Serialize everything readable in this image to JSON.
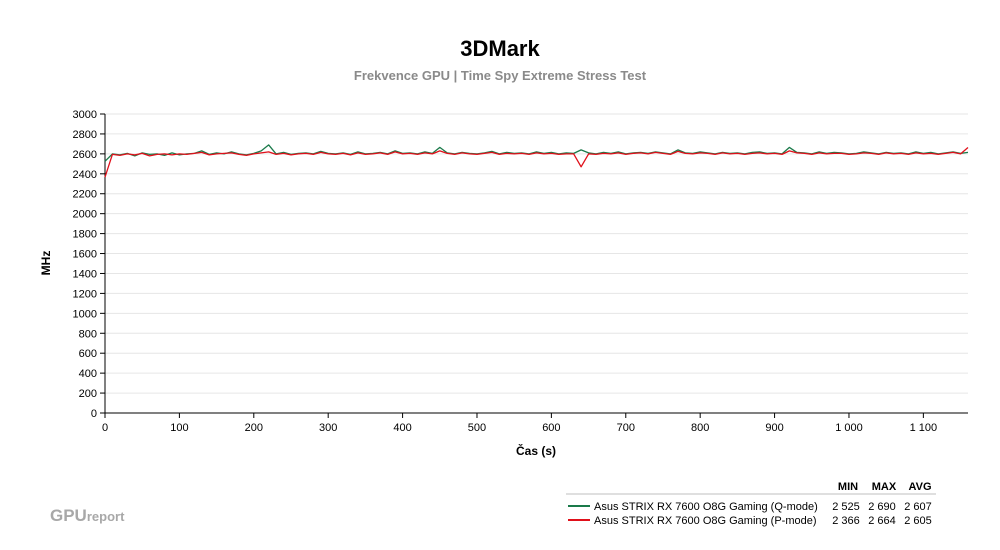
{
  "chart_data": {
    "type": "line",
    "title": "3DMark",
    "subtitle": "Frekvence GPU | Time Spy Extreme Stress Test",
    "xlabel": "Čas (s)",
    "ylabel": "MHz",
    "xlim": [
      0,
      1160
    ],
    "ylim": [
      0,
      3000
    ],
    "x_ticks": [
      0,
      100,
      200,
      300,
      400,
      500,
      600,
      700,
      800,
      900,
      1000,
      1100
    ],
    "x_tick_labels": [
      "0",
      "100",
      "200",
      "300",
      "400",
      "500",
      "600",
      "700",
      "800",
      "900",
      "1 000",
      "1 100"
    ],
    "y_ticks": [
      0,
      200,
      400,
      600,
      800,
      1000,
      1200,
      1400,
      1600,
      1800,
      2000,
      2200,
      2400,
      2600,
      2800,
      3000
    ],
    "y_tick_labels": [
      "0",
      "200",
      "400",
      "600",
      "800",
      "1000",
      "1200",
      "1400",
      "1600",
      "1800",
      "2000",
      "2200",
      "2400",
      "2600",
      "2800",
      "3000"
    ],
    "grid": "horizontal",
    "legend_position": "bottom-right",
    "stat_headers": [
      "MIN",
      "MAX",
      "AVG"
    ],
    "x": [
      0,
      10,
      20,
      30,
      40,
      50,
      60,
      70,
      80,
      90,
      100,
      110,
      120,
      130,
      140,
      150,
      160,
      170,
      180,
      190,
      200,
      210,
      220,
      230,
      240,
      250,
      260,
      270,
      280,
      290,
      300,
      310,
      320,
      330,
      340,
      350,
      360,
      370,
      380,
      390,
      400,
      410,
      420,
      430,
      440,
      450,
      460,
      470,
      480,
      490,
      500,
      510,
      520,
      530,
      540,
      550,
      560,
      570,
      580,
      590,
      600,
      610,
      620,
      630,
      640,
      650,
      660,
      670,
      680,
      690,
      700,
      710,
      720,
      730,
      740,
      750,
      760,
      770,
      780,
      790,
      800,
      810,
      820,
      830,
      840,
      850,
      860,
      870,
      880,
      890,
      900,
      910,
      920,
      930,
      940,
      950,
      960,
      970,
      980,
      990,
      1000,
      1010,
      1020,
      1030,
      1040,
      1050,
      1060,
      1070,
      1080,
      1090,
      1100,
      1110,
      1120,
      1130,
      1140,
      1150,
      1160
    ],
    "series": [
      {
        "name": "Asus STRIX RX 7600 O8G Gaming (Q-mode)",
        "color": "#1a7a4a",
        "stats": [
          "2 525",
          "2 690",
          "2 607"
        ],
        "values": [
          2525,
          2600,
          2590,
          2605,
          2580,
          2610,
          2595,
          2600,
          2585,
          2610,
          2590,
          2600,
          2605,
          2630,
          2595,
          2610,
          2600,
          2620,
          2600,
          2590,
          2605,
          2630,
          2690,
          2600,
          2615,
          2595,
          2605,
          2610,
          2600,
          2625,
          2605,
          2600,
          2610,
          2595,
          2620,
          2600,
          2605,
          2615,
          2600,
          2630,
          2605,
          2610,
          2600,
          2620,
          2605,
          2665,
          2610,
          2600,
          2615,
          2605,
          2600,
          2610,
          2625,
          2600,
          2615,
          2605,
          2610,
          2600,
          2620,
          2605,
          2615,
          2600,
          2610,
          2605,
          2640,
          2610,
          2600,
          2615,
          2605,
          2620,
          2600,
          2610,
          2615,
          2605,
          2620,
          2610,
          2600,
          2640,
          2610,
          2605,
          2620,
          2610,
          2600,
          2615,
          2605,
          2610,
          2600,
          2615,
          2620,
          2605,
          2610,
          2600,
          2665,
          2615,
          2610,
          2600,
          2620,
          2605,
          2615,
          2610,
          2600,
          2605,
          2620,
          2610,
          2600,
          2615,
          2605,
          2610,
          2600,
          2620,
          2605,
          2615,
          2600,
          2610,
          2620,
          2605,
          2615
        ]
      },
      {
        "name": "Asus STRIX RX 7600 O8G Gaming (P-mode)",
        "color": "#e0101a",
        "stats": [
          "2 366",
          "2 664",
          "2 605"
        ],
        "values": [
          2366,
          2595,
          2585,
          2600,
          2590,
          2605,
          2580,
          2595,
          2600,
          2590,
          2600,
          2595,
          2605,
          2615,
          2590,
          2600,
          2605,
          2610,
          2595,
          2585,
          2600,
          2610,
          2620,
          2595,
          2605,
          2590,
          2600,
          2605,
          2595,
          2615,
          2600,
          2595,
          2605,
          2590,
          2610,
          2595,
          2600,
          2610,
          2595,
          2620,
          2600,
          2605,
          2595,
          2610,
          2600,
          2630,
          2605,
          2595,
          2610,
          2600,
          2595,
          2605,
          2615,
          2595,
          2605,
          2600,
          2605,
          2595,
          2610,
          2600,
          2605,
          2595,
          2600,
          2600,
          2470,
          2600,
          2595,
          2605,
          2600,
          2610,
          2595,
          2605,
          2610,
          2600,
          2615,
          2605,
          2595,
          2625,
          2605,
          2600,
          2610,
          2605,
          2595,
          2610,
          2600,
          2605,
          2595,
          2605,
          2610,
          2600,
          2605,
          2595,
          2630,
          2610,
          2605,
          2595,
          2610,
          2600,
          2605,
          2605,
          2595,
          2600,
          2610,
          2605,
          2595,
          2610,
          2600,
          2605,
          2595,
          2610,
          2600,
          2605,
          2595,
          2605,
          2615,
          2600,
          2664
        ]
      }
    ]
  },
  "logo": {
    "main": "GPU",
    "sub": "report"
  }
}
